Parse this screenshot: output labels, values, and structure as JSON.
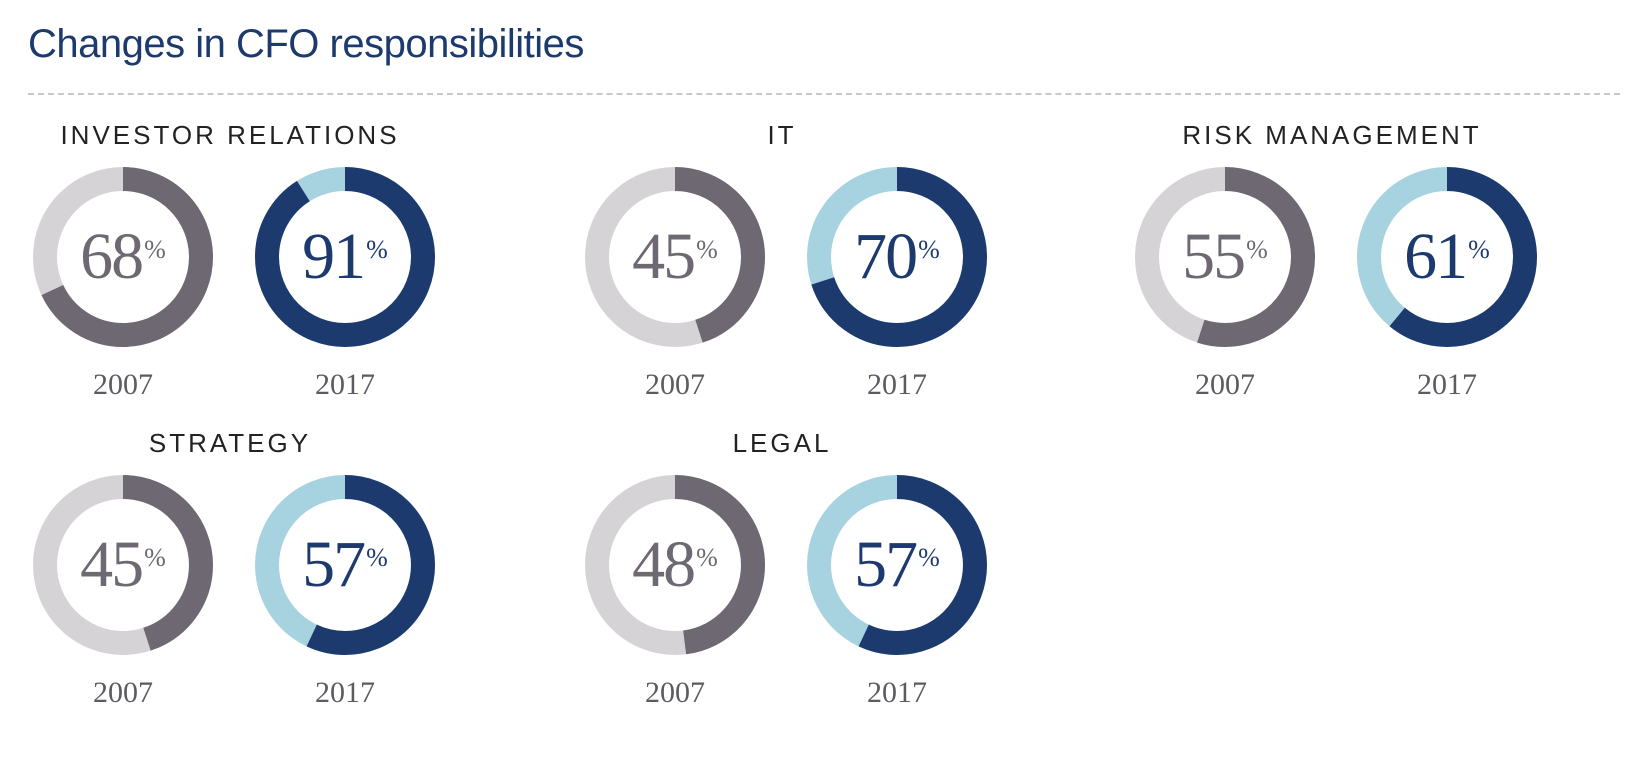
{
  "title": "Changes in CFO responsibilities",
  "colors": {
    "title": "#1d3a6e",
    "y2007_fill": "#6d6872",
    "y2007_track": "#d6d3d7",
    "y2017_fill": "#1d3a6e",
    "y2017_track": "#a7d2df"
  },
  "chart_data": {
    "type": "donut",
    "title": "Changes in CFO responsibilities",
    "unit": "%",
    "years": [
      "2007",
      "2017"
    ],
    "groups": [
      {
        "name": "INVESTOR RELATIONS",
        "values": [
          68,
          91
        ]
      },
      {
        "name": "IT",
        "values": [
          45,
          70
        ]
      },
      {
        "name": "RISK MANAGEMENT",
        "values": [
          55,
          61
        ]
      },
      {
        "name": "STRATEGY",
        "values": [
          45,
          57
        ]
      },
      {
        "name": "LEGAL",
        "values": [
          48,
          57
        ]
      }
    ]
  }
}
